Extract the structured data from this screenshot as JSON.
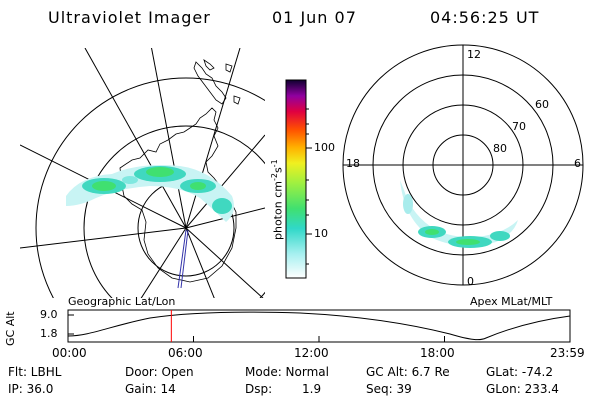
{
  "header": {
    "instrument": "Ultraviolet Imager",
    "date": "01 Jun 07",
    "time": "04:56:25 UT"
  },
  "colorbar": {
    "unit_label": "photon cm",
    "unit_sup": "-2",
    "unit_mid": "s",
    "unit_sup2": "-1",
    "tick_100": "100",
    "tick_10": "10"
  },
  "left_panel": {
    "caption": "Geographic Lat/Lon"
  },
  "right_panel": {
    "caption": "Apex MLat/MLT",
    "mlt_12": "12",
    "mlt_18": "18",
    "mlt_6": "6",
    "mlt_0": "0",
    "lat_60": "60",
    "lat_70": "70",
    "lat_80": "80"
  },
  "orbit_plot": {
    "ylabel": "GC Alt",
    "ytick_top": "9.0",
    "ytick_bottom": "1.8",
    "xticks": [
      "00:00",
      "06:00",
      "12:00",
      "18:00",
      "23:59"
    ],
    "current_time_hours": 4.94
  },
  "status": {
    "flt": "Flt: LBHL",
    "ip": "IP: 36.0",
    "door": "Door: Open",
    "gain": "Gain: 14",
    "mode": "Mode: Normal",
    "dsp_label": "Dsp:",
    "dsp_value": "1.9",
    "gc_alt": "GC Alt: 6.7 Re",
    "seq": "Seq: 39",
    "glat": "GLat: -74.2",
    "glon": "GLon: 233.4"
  },
  "colors": {
    "orbit_marker": "#ff0000",
    "footprint_line": "#3333aa"
  }
}
